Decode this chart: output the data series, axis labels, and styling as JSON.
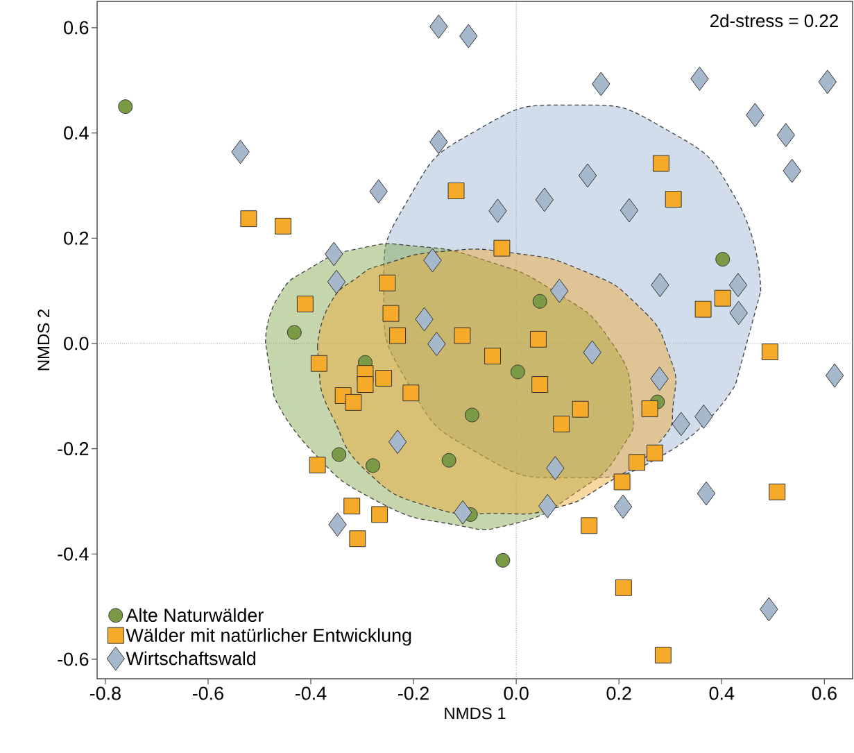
{
  "chart_data": {
    "type": "scatter",
    "xlabel": "NMDS 1",
    "ylabel": "NMDS 2",
    "xlim": [
      -0.816,
      0.655
    ],
    "ylim": [
      -0.637,
      0.65
    ],
    "xticks": [
      -0.8,
      -0.6,
      -0.4,
      -0.2,
      {
        "value": 0,
        "label": "0.0"
      },
      0.2,
      0.4,
      0.6
    ],
    "yticks": [
      -0.6,
      -0.4,
      -0.2,
      {
        "value": 0,
        "label": "0.0"
      },
      0.2,
      0.4,
      0.6
    ],
    "legend": "bottom left",
    "annotations": [
      "2d-stress = 0.22"
    ],
    "ref_lines": [
      {
        "axis": "x",
        "value": 0,
        "line_style": "dotted",
        "color": "#808080"
      },
      {
        "axis": "y",
        "value": 0,
        "line_style": "dotted",
        "color": "#8a8a8a"
      }
    ],
    "series": [
      {
        "type": "area",
        "color": "#9ab4d0",
        "line_style": "dashed",
        "x": [
          0.476,
          0.427,
          0.293,
          0.109,
          -0.075,
          -0.209,
          -0.258,
          -0.209,
          -0.075,
          0.109,
          0.293,
          0.427
        ],
        "values": [
          0.099,
          0.276,
          0.406,
          0.453,
          0.406,
          0.276,
          0.099,
          -0.078,
          -0.208,
          -0.255,
          -0.208,
          -0.078
        ]
      },
      {
        "type": "area",
        "color": "#7fa34a",
        "line_style": "dashed",
        "x": [
          -0.488,
          -0.465,
          -0.398,
          -0.303,
          -0.196,
          -0.061,
          0.074,
          0.182,
          0.225,
          0.202,
          0.115,
          -0.007,
          -0.128,
          -0.276,
          -0.398,
          -0.472
        ],
        "values": [
          0.0,
          0.086,
          0.145,
          0.181,
          0.185,
          0.158,
          0.099,
          0.007,
          -0.112,
          -0.204,
          -0.284,
          -0.343,
          -0.343,
          -0.297,
          -0.204,
          -0.099
        ]
      },
      {
        "type": "area",
        "color": "#f0a830",
        "line_style": "dashed",
        "x": [
          -0.387,
          -0.364,
          -0.31,
          -0.252,
          -0.142,
          -0.007,
          0.128,
          0.236,
          0.297,
          0.306,
          0.276,
          0.169,
          0.074,
          -0.034,
          -0.169,
          -0.29,
          -0.358,
          -0.382
        ],
        "values": [
          -0.007,
          0.073,
          0.125,
          0.152,
          0.175,
          0.172,
          0.139,
          0.073,
          -0.02,
          -0.112,
          -0.191,
          -0.27,
          -0.313,
          -0.323,
          -0.31,
          -0.244,
          -0.139,
          -0.073
        ]
      },
      {
        "name": "Alte Naturwälder",
        "color": "#7a9a45",
        "marker": "circle",
        "x": [
          -0.761,
          -0.432,
          -0.294,
          0.003,
          0.046,
          -0.086,
          -0.131,
          -0.279,
          -0.345,
          0.275,
          0.402,
          -0.089,
          -0.026
        ],
        "values": [
          0.45,
          0.021,
          -0.036,
          -0.054,
          0.08,
          -0.136,
          -0.222,
          -0.232,
          -0.211,
          -0.111,
          0.16,
          -0.325,
          -0.412
        ]
      },
      {
        "name": "Wälder mit natürlicher Entwicklung",
        "color": "#f5aa2a",
        "marker": "square",
        "x": [
          -0.521,
          -0.454,
          -0.117,
          0.282,
          0.306,
          -0.028,
          -0.251,
          -0.411,
          -0.244,
          -0.231,
          -0.105,
          0.043,
          -0.384,
          -0.294,
          -0.294,
          -0.337,
          -0.317,
          -0.258,
          -0.205,
          -0.046,
          0.046,
          0.088,
          0.125,
          0.26,
          0.27,
          0.235,
          0.206,
          0.142,
          0.364,
          0.402,
          0.494,
          0.508,
          0.209,
          0.286,
          -0.387,
          -0.32,
          -0.266,
          -0.309
        ],
        "values": [
          0.237,
          0.223,
          0.29,
          0.342,
          0.274,
          0.181,
          0.115,
          0.075,
          0.057,
          0.015,
          0.015,
          0.008,
          -0.038,
          -0.057,
          -0.078,
          -0.099,
          -0.112,
          -0.066,
          -0.094,
          -0.024,
          -0.078,
          -0.153,
          -0.125,
          -0.124,
          -0.208,
          -0.226,
          -0.263,
          -0.346,
          0.065,
          0.086,
          -0.016,
          -0.282,
          -0.464,
          -0.592,
          -0.231,
          -0.309,
          -0.325,
          -0.371
        ]
      },
      {
        "name": "Wirtschaftswald",
        "color": "#a6b8cc",
        "marker": "diamond",
        "x": [
          -0.151,
          -0.093,
          -0.537,
          -0.151,
          -0.268,
          -0.355,
          -0.35,
          -0.163,
          -0.179,
          -0.155,
          -0.036,
          0.055,
          0.139,
          0.22,
          0.165,
          0.357,
          0.465,
          0.525,
          0.537,
          0.606,
          0.084,
          0.28,
          0.432,
          0.433,
          0.148,
          0.279,
          0.321,
          0.365,
          0.62,
          -0.231,
          0.076,
          0.061,
          0.208,
          0.37,
          0.492,
          -0.348,
          -0.104
        ],
        "values": [
          0.602,
          0.584,
          0.364,
          0.383,
          0.289,
          0.17,
          0.117,
          0.158,
          0.046,
          -0.001,
          0.252,
          0.273,
          0.319,
          0.253,
          0.493,
          0.503,
          0.434,
          0.396,
          0.328,
          0.497,
          0.1,
          0.111,
          0.111,
          0.058,
          -0.017,
          -0.067,
          -0.153,
          -0.139,
          -0.061,
          -0.187,
          -0.237,
          -0.309,
          -0.31,
          -0.285,
          -0.505,
          -0.344,
          -0.321
        ]
      }
    ]
  }
}
